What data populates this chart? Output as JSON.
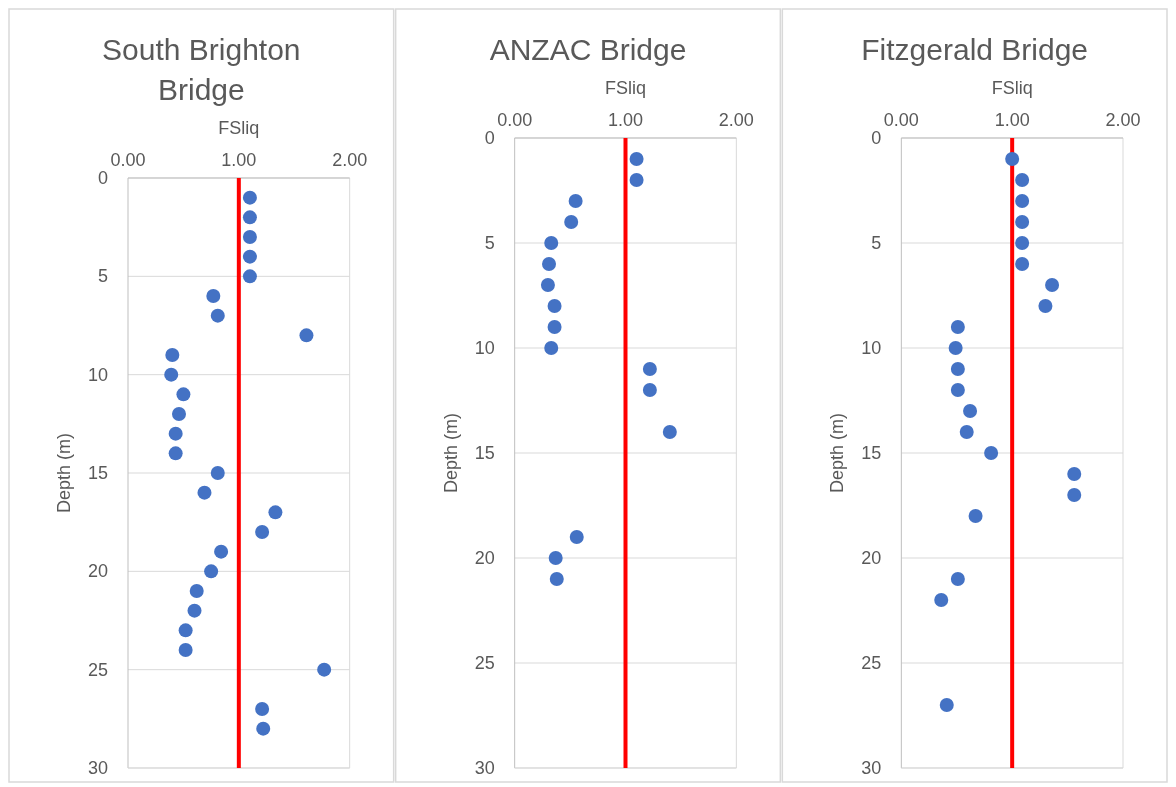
{
  "chart_data": [
    {
      "type": "scatter",
      "title": "South Brighton Bridge",
      "xlabel": "FSliq",
      "ylabel": "Depth (m)",
      "xlim": [
        0,
        2
      ],
      "xticks": [
        {
          "value": 0,
          "label": "0.00"
        },
        {
          "value": 1,
          "label": "1.00"
        },
        {
          "value": 2,
          "label": "2.00"
        }
      ],
      "ylim": [
        30,
        0
      ],
      "yticks": [
        0,
        5,
        10,
        15,
        20,
        25,
        30
      ],
      "grid": "y",
      "marker": "circle",
      "series": [
        {
          "color": "#4472c4",
          "x": [
            1.1,
            1.1,
            1.1,
            1.1,
            1.1,
            0.77,
            0.81,
            1.61,
            0.4,
            0.39,
            0.5,
            0.46,
            0.43,
            0.43,
            0.81,
            0.69,
            1.33,
            1.21,
            0.84,
            0.75,
            0.62,
            0.6,
            0.52,
            0.52,
            1.77,
            1.21,
            1.22
          ],
          "values": [
            1,
            2,
            3,
            4,
            5,
            6,
            7,
            8,
            9,
            10,
            11,
            12,
            13,
            14,
            15,
            16,
            17,
            18,
            19,
            20,
            21,
            22,
            23,
            24,
            25,
            27,
            28
          ]
        }
      ],
      "ref_lines": [
        {
          "axis": "x",
          "value": 1,
          "color": "#ff0000"
        }
      ]
    },
    {
      "type": "scatter",
      "title": "ANZAC Bridge",
      "xlabel": "FSliq",
      "ylabel": "Depth (m)",
      "xlim": [
        0,
        2
      ],
      "xticks": [
        {
          "value": 0,
          "label": "0.00"
        },
        {
          "value": 1,
          "label": "1.00"
        },
        {
          "value": 2,
          "label": "2.00"
        }
      ],
      "ylim": [
        30,
        0
      ],
      "yticks": [
        0,
        5,
        10,
        15,
        20,
        25,
        30
      ],
      "grid": "y",
      "marker": "circle",
      "series": [
        {
          "color": "#4472c4",
          "x": [
            1.1,
            1.1,
            0.55,
            0.51,
            0.33,
            0.31,
            0.3,
            0.36,
            0.36,
            0.33,
            1.22,
            1.22,
            1.4,
            0.56,
            0.37,
            0.38
          ],
          "values": [
            1,
            2,
            3,
            4,
            5,
            6,
            7,
            8,
            9,
            10,
            11,
            12,
            14,
            19,
            20,
            21
          ]
        }
      ],
      "ref_lines": [
        {
          "axis": "x",
          "value": 1,
          "color": "#ff0000"
        }
      ]
    },
    {
      "type": "scatter",
      "title": "Fitzgerald Bridge",
      "xlabel": "FSliq",
      "ylabel": "Depth (m)",
      "xlim": [
        0,
        2
      ],
      "xticks": [
        {
          "value": 0,
          "label": "0.00"
        },
        {
          "value": 1,
          "label": "1.00"
        },
        {
          "value": 2,
          "label": "2.00"
        }
      ],
      "ylim": [
        30,
        0
      ],
      "yticks": [
        0,
        5,
        10,
        15,
        20,
        25,
        30
      ],
      "grid": "y",
      "marker": "circle",
      "series": [
        {
          "color": "#4472c4",
          "x": [
            1.0,
            1.09,
            1.09,
            1.09,
            1.09,
            1.09,
            1.36,
            1.3,
            0.51,
            0.49,
            0.51,
            0.51,
            0.62,
            0.59,
            0.81,
            1.56,
            1.56,
            0.67,
            0.51,
            0.36,
            0.41
          ],
          "values": [
            1,
            2,
            3,
            4,
            5,
            6,
            7,
            8,
            9,
            10,
            11,
            12,
            13,
            14,
            15,
            16,
            17,
            18,
            21,
            22,
            27
          ]
        }
      ],
      "ref_lines": [
        {
          "axis": "x",
          "value": 1,
          "color": "#ff0000"
        }
      ]
    }
  ]
}
